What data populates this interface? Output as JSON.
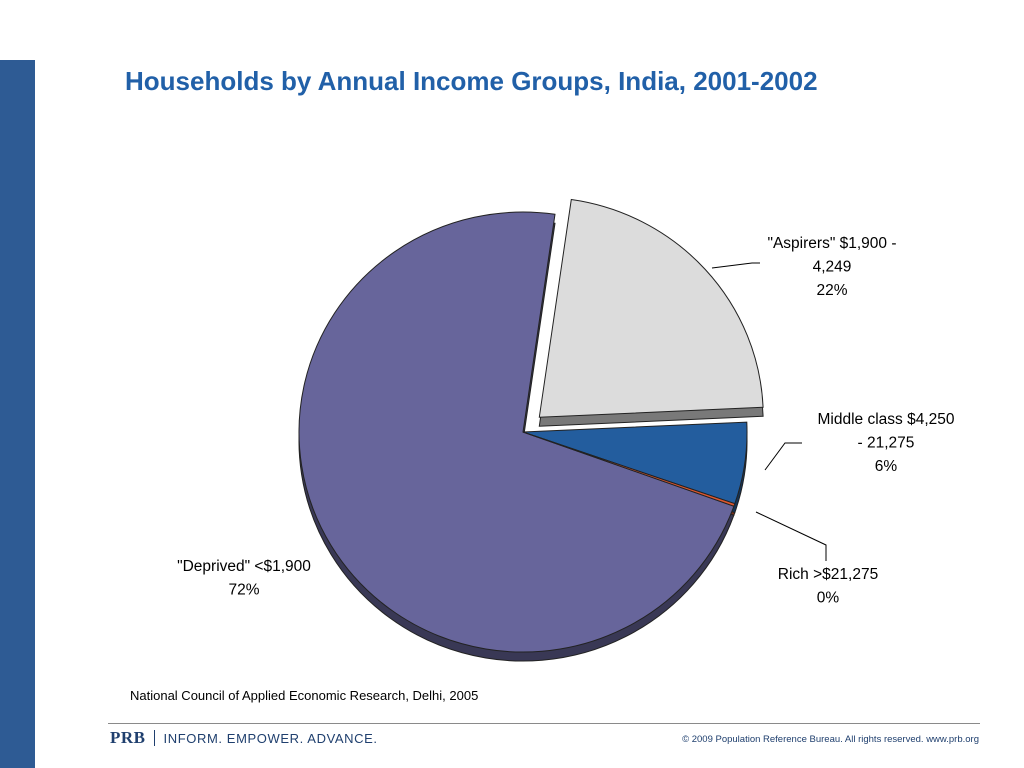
{
  "chart_data": {
    "type": "pie",
    "title": "Households by Annual Income Groups, India, 2001-2002",
    "slices": [
      {
        "label_lines": [
          "\"Deprived\" <$1,900",
          "72%"
        ],
        "value": 72,
        "color": "#67659b"
      },
      {
        "label_lines": [
          "\"Aspirers\" $1,900 -",
          "4,249",
          "22%"
        ],
        "value": 22,
        "color": "#dcdcdc",
        "exploded": true
      },
      {
        "label_lines": [
          "Middle class $4,250",
          "- 21,275",
          "6%"
        ],
        "value": 6,
        "color": "#235d9e"
      },
      {
        "label_lines": [
          "Rich >$21,275",
          "0%"
        ],
        "value": 0,
        "color": "#e0572f"
      }
    ],
    "style": "3d-tilted"
  },
  "source": "National Council of Applied Economic Research, Delhi, 2005",
  "footer": {
    "logo": "PRB",
    "tagline": "INFORM. EMPOWER. ADVANCE.",
    "copyright": "© 2009 Population Reference Bureau. All rights reserved. www.prb.org"
  },
  "colors": {
    "accent_bar": "#2e5b94",
    "title": "#2160a8"
  }
}
